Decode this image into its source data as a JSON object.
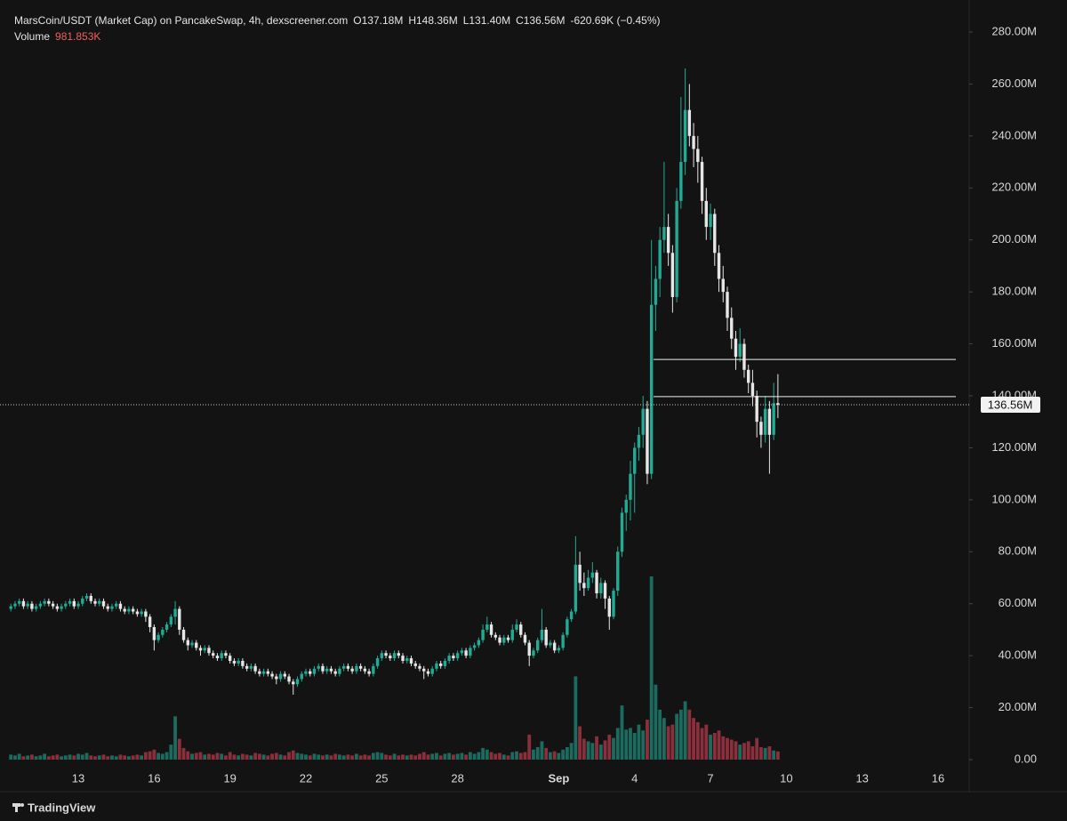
{
  "chart_data": {
    "type": "candlestick",
    "title": "MarsCoin/USDT (Market Cap) on PancakeSwap, 4h, dexscreener.com",
    "ohlc_legend": [
      "O137.18M",
      "H148.36M",
      "L131.40M",
      "C136.56M",
      "-620.69K (−0.45%)"
    ],
    "volume_label": "Volume",
    "volume_value": "981.853K",
    "footer": "TradingView",
    "up_color": "#22ab94",
    "down_color": "#e6e6e6",
    "volume_up_color": "#1c6b5f",
    "volume_down_color": "#8c2f3c",
    "ylim": [
      0,
      280
    ],
    "yticks": [
      {
        "value": 0,
        "label": "0.00"
      },
      {
        "value": 20,
        "label": "20.00M"
      },
      {
        "value": 40,
        "label": "40.00M"
      },
      {
        "value": 60,
        "label": "60.00M"
      },
      {
        "value": 80,
        "label": "80.00M"
      },
      {
        "value": 100,
        "label": "100.00M"
      },
      {
        "value": 120,
        "label": "120.00M"
      },
      {
        "value": 140,
        "label": "140.00M"
      },
      {
        "value": 160,
        "label": "160.00M"
      },
      {
        "value": 180,
        "label": "180.00M"
      },
      {
        "value": 200,
        "label": "200.00M"
      },
      {
        "value": 220,
        "label": "220.00M"
      },
      {
        "value": 240,
        "label": "240.00M"
      },
      {
        "value": 260,
        "label": "260.00M"
      },
      {
        "value": 280,
        "label": "280.00M"
      }
    ],
    "last_price": {
      "value": 136.56,
      "label": "136.56M"
    },
    "hlines": [
      154,
      139.7
    ],
    "categories": [
      null,
      null,
      null,
      null,
      null,
      null,
      null,
      null,
      null,
      null,
      null,
      null,
      null,
      null,
      null,
      null,
      "13",
      null,
      null,
      null,
      null,
      null,
      null,
      null,
      null,
      null,
      null,
      null,
      null,
      null,
      null,
      null,
      null,
      null,
      "16",
      null,
      null,
      null,
      null,
      null,
      null,
      null,
      null,
      null,
      null,
      null,
      null,
      null,
      null,
      null,
      null,
      null,
      "19",
      null,
      null,
      null,
      null,
      null,
      null,
      null,
      null,
      null,
      null,
      null,
      null,
      null,
      null,
      null,
      null,
      null,
      "22",
      null,
      null,
      null,
      null,
      null,
      null,
      null,
      null,
      null,
      null,
      null,
      null,
      null,
      null,
      null,
      null,
      null,
      "25",
      null,
      null,
      null,
      null,
      null,
      null,
      null,
      null,
      null,
      null,
      null,
      null,
      null,
      null,
      null,
      null,
      null,
      "28",
      null,
      null,
      null,
      null,
      null,
      null,
      null,
      null,
      null,
      null,
      null,
      null,
      null,
      null,
      null,
      null,
      null,
      null,
      null,
      null,
      null,
      null,
      null,
      "Sep",
      null,
      null,
      null,
      null,
      null,
      null,
      null,
      null,
      null,
      null,
      null,
      null,
      null,
      null,
      null,
      null,
      null,
      "4",
      null,
      null,
      null,
      null,
      null,
      null,
      null,
      null,
      null,
      null,
      null,
      null,
      null,
      null,
      null,
      null,
      null,
      "7",
      null,
      null,
      null,
      null,
      null,
      null,
      null,
      null,
      null,
      null,
      null,
      null,
      null,
      null,
      null,
      null,
      null,
      "10",
      null,
      null,
      null,
      null,
      null,
      null,
      null,
      null,
      null,
      null,
      null,
      null,
      null,
      null,
      null,
      null,
      null,
      "13",
      null,
      null,
      null,
      null,
      null,
      null,
      null,
      null,
      null,
      null,
      null,
      null,
      null,
      null,
      null,
      null,
      null,
      "16",
      null,
      null,
      null,
      null,
      null,
      null,
      null
    ],
    "candles": [
      [
        58,
        60,
        57,
        59,
        600
      ],
      [
        59,
        61,
        58,
        60,
        500
      ],
      [
        60,
        62,
        59,
        61,
        700
      ],
      [
        61,
        62,
        58,
        59,
        400
      ],
      [
        59,
        61,
        58,
        60,
        500
      ],
      [
        60,
        61,
        57,
        58,
        600
      ],
      [
        58,
        60,
        57,
        59,
        400
      ],
      [
        59,
        61,
        58,
        60,
        500
      ],
      [
        60,
        62,
        59,
        61,
        700
      ],
      [
        61,
        62,
        59,
        60,
        400
      ],
      [
        60,
        61,
        58,
        59,
        500
      ],
      [
        59,
        60,
        57,
        58,
        600
      ],
      [
        58,
        60,
        57,
        59,
        400
      ],
      [
        59,
        61,
        58,
        60,
        500
      ],
      [
        60,
        62,
        59,
        61,
        600
      ],
      [
        61,
        62,
        58,
        59,
        500
      ],
      [
        59,
        61,
        58,
        60,
        700
      ],
      [
        60,
        63,
        59,
        62,
        600
      ],
      [
        62,
        64,
        61,
        63,
        800
      ],
      [
        63,
        64,
        60,
        61,
        500
      ],
      [
        61,
        62,
        59,
        60,
        400
      ],
      [
        60,
        62,
        59,
        61,
        500
      ],
      [
        61,
        62,
        58,
        59,
        600
      ],
      [
        59,
        60,
        57,
        58,
        400
      ],
      [
        58,
        60,
        57,
        59,
        500
      ],
      [
        59,
        61,
        58,
        60,
        400
      ],
      [
        60,
        61,
        57,
        58,
        600
      ],
      [
        58,
        59,
        56,
        57,
        500
      ],
      [
        57,
        59,
        56,
        58,
        400
      ],
      [
        58,
        59,
        56,
        57,
        500
      ],
      [
        57,
        58,
        55,
        56,
        600
      ],
      [
        56,
        58,
        55,
        57,
        500
      ],
      [
        57,
        58,
        53,
        55,
        900
      ],
      [
        55,
        56,
        49,
        51,
        1000
      ],
      [
        51,
        52,
        42,
        46,
        1200
      ],
      [
        46,
        49,
        45,
        48,
        800
      ],
      [
        48,
        51,
        47,
        50,
        700
      ],
      [
        50,
        53,
        49,
        52,
        900
      ],
      [
        52,
        56,
        51,
        55,
        1800
      ],
      [
        55,
        61,
        52,
        58,
        5200
      ],
      [
        58,
        59,
        48,
        50,
        2500
      ],
      [
        50,
        51,
        45,
        46,
        1400
      ],
      [
        46,
        47,
        42,
        44,
        1000
      ],
      [
        44,
        46,
        43,
        45,
        700
      ],
      [
        45,
        46,
        42,
        43,
        800
      ],
      [
        43,
        44,
        40,
        42,
        900
      ],
      [
        42,
        44,
        41,
        43,
        600
      ],
      [
        43,
        44,
        40,
        41,
        700
      ],
      [
        41,
        42,
        39,
        40,
        600
      ],
      [
        40,
        41,
        38,
        39,
        800
      ],
      [
        39,
        42,
        38,
        41,
        700
      ],
      [
        41,
        42,
        39,
        40,
        500
      ],
      [
        40,
        41,
        37,
        38,
        900
      ],
      [
        38,
        39,
        36,
        37,
        600
      ],
      [
        37,
        39,
        36,
        38,
        500
      ],
      [
        38,
        39,
        35,
        36,
        700
      ],
      [
        36,
        37,
        34,
        35,
        600
      ],
      [
        35,
        37,
        34,
        36,
        500
      ],
      [
        36,
        37,
        33,
        34,
        800
      ],
      [
        34,
        35,
        32,
        33,
        700
      ],
      [
        33,
        35,
        32,
        34,
        600
      ],
      [
        34,
        35,
        32,
        33,
        500
      ],
      [
        33,
        34,
        31,
        32,
        700
      ],
      [
        32,
        33,
        29,
        31,
        800
      ],
      [
        31,
        34,
        30,
        33,
        600
      ],
      [
        33,
        34,
        31,
        32,
        500
      ],
      [
        32,
        33,
        29,
        30,
        900
      ],
      [
        30,
        31,
        25,
        29,
        1100
      ],
      [
        29,
        32,
        28,
        31,
        800
      ],
      [
        31,
        34,
        30,
        33,
        700
      ],
      [
        33,
        35,
        32,
        34,
        600
      ],
      [
        34,
        35,
        32,
        33,
        500
      ],
      [
        33,
        36,
        32,
        35,
        700
      ],
      [
        35,
        37,
        34,
        36,
        600
      ],
      [
        36,
        37,
        33,
        34,
        500
      ],
      [
        34,
        36,
        33,
        35,
        600
      ],
      [
        35,
        36,
        33,
        34,
        500
      ],
      [
        34,
        35,
        32,
        33,
        700
      ],
      [
        33,
        36,
        32,
        35,
        600
      ],
      [
        35,
        37,
        34,
        36,
        500
      ],
      [
        36,
        37,
        34,
        35,
        600
      ],
      [
        35,
        36,
        33,
        34,
        500
      ],
      [
        34,
        37,
        33,
        36,
        700
      ],
      [
        36,
        37,
        34,
        35,
        500
      ],
      [
        35,
        36,
        33,
        34,
        600
      ],
      [
        34,
        35,
        32,
        33,
        500
      ],
      [
        33,
        37,
        32,
        36,
        800
      ],
      [
        36,
        40,
        35,
        39,
        900
      ],
      [
        39,
        42,
        38,
        41,
        800
      ],
      [
        41,
        42,
        39,
        40,
        600
      ],
      [
        40,
        41,
        38,
        39,
        500
      ],
      [
        39,
        42,
        38,
        41,
        700
      ],
      [
        41,
        42,
        39,
        40,
        500
      ],
      [
        40,
        41,
        37,
        38,
        600
      ],
      [
        38,
        40,
        37,
        39,
        500
      ],
      [
        39,
        40,
        36,
        37,
        600
      ],
      [
        37,
        38,
        35,
        36,
        500
      ],
      [
        36,
        37,
        34,
        35,
        700
      ],
      [
        35,
        36,
        31,
        34,
        900
      ],
      [
        34,
        35,
        32,
        33,
        600
      ],
      [
        33,
        36,
        32,
        35,
        700
      ],
      [
        35,
        38,
        34,
        37,
        800
      ],
      [
        37,
        38,
        35,
        36,
        500
      ],
      [
        36,
        39,
        35,
        38,
        700
      ],
      [
        38,
        41,
        37,
        40,
        800
      ],
      [
        40,
        41,
        38,
        39,
        600
      ],
      [
        39,
        42,
        38,
        41,
        700
      ],
      [
        41,
        43,
        40,
        42,
        800
      ],
      [
        42,
        43,
        39,
        40,
        600
      ],
      [
        40,
        44,
        39,
        43,
        900
      ],
      [
        43,
        45,
        42,
        44,
        700
      ],
      [
        44,
        47,
        43,
        46,
        900
      ],
      [
        46,
        52,
        45,
        50,
        1400
      ],
      [
        50,
        55,
        49,
        52,
        1200
      ],
      [
        52,
        53,
        47,
        48,
        900
      ],
      [
        48,
        49,
        46,
        47,
        700
      ],
      [
        47,
        48,
        44,
        45,
        800
      ],
      [
        45,
        48,
        44,
        47,
        600
      ],
      [
        47,
        48,
        45,
        46,
        500
      ],
      [
        46,
        52,
        45,
        50,
        900
      ],
      [
        50,
        54,
        49,
        52,
        1000
      ],
      [
        52,
        53,
        47,
        48,
        800
      ],
      [
        48,
        49,
        44,
        45,
        900
      ],
      [
        45,
        46,
        36,
        40,
        3000
      ],
      [
        40,
        43,
        39,
        42,
        1200
      ],
      [
        42,
        47,
        41,
        46,
        1500
      ],
      [
        46,
        58,
        45,
        50,
        2200
      ],
      [
        50,
        51,
        43,
        44,
        1400
      ],
      [
        44,
        46,
        43,
        45,
        900
      ],
      [
        45,
        46,
        41,
        42,
        1000
      ],
      [
        42,
        44,
        41,
        43,
        800
      ],
      [
        43,
        49,
        42,
        48,
        1200
      ],
      [
        48,
        55,
        47,
        54,
        1500
      ],
      [
        54,
        58,
        53,
        57,
        2000
      ],
      [
        57,
        86,
        56,
        75,
        10000
      ],
      [
        75,
        80,
        65,
        68,
        4000
      ],
      [
        68,
        72,
        63,
        66,
        2500
      ],
      [
        66,
        73,
        65,
        70,
        2200
      ],
      [
        70,
        76,
        68,
        72,
        2000
      ],
      [
        72,
        73,
        62,
        64,
        2800
      ],
      [
        64,
        70,
        62,
        68,
        1800
      ],
      [
        68,
        69,
        58,
        62,
        2300
      ],
      [
        62,
        63,
        50,
        55,
        3000
      ],
      [
        55,
        66,
        54,
        65,
        2600
      ],
      [
        65,
        82,
        63,
        80,
        3800
      ],
      [
        80,
        97,
        78,
        95,
        6500
      ],
      [
        95,
        102,
        88,
        100,
        3600
      ],
      [
        100,
        115,
        92,
        110,
        3800
      ],
      [
        110,
        122,
        95,
        120,
        3200
      ],
      [
        120,
        128,
        115,
        125,
        4200
      ],
      [
        125,
        140,
        120,
        135,
        3500
      ],
      [
        135,
        138,
        106,
        110,
        4800
      ],
      [
        110,
        200,
        108,
        175,
        22000
      ],
      [
        175,
        190,
        165,
        185,
        9000
      ],
      [
        185,
        205,
        178,
        200,
        6000
      ],
      [
        200,
        230,
        195,
        205,
        5000
      ],
      [
        205,
        210,
        190,
        195,
        4000
      ],
      [
        195,
        198,
        172,
        178,
        4200
      ],
      [
        178,
        220,
        176,
        215,
        5500
      ],
      [
        215,
        255,
        212,
        230,
        6000
      ],
      [
        230,
        266,
        225,
        250,
        7000
      ],
      [
        250,
        260,
        236,
        240,
        6000
      ],
      [
        240,
        245,
        228,
        235,
        5000
      ],
      [
        235,
        240,
        222,
        230,
        4500
      ],
      [
        230,
        232,
        210,
        215,
        3800
      ],
      [
        215,
        220,
        200,
        205,
        4200
      ],
      [
        205,
        214,
        200,
        210,
        3000
      ],
      [
        210,
        212,
        190,
        195,
        3200
      ],
      [
        195,
        198,
        180,
        185,
        3500
      ],
      [
        185,
        190,
        176,
        180,
        2800
      ],
      [
        180,
        182,
        165,
        170,
        2600
      ],
      [
        170,
        174,
        158,
        162,
        2400
      ],
      [
        162,
        165,
        150,
        155,
        2200
      ],
      [
        155,
        166,
        153,
        160,
        1800
      ],
      [
        160,
        162,
        147,
        150,
        2000
      ],
      [
        150,
        152,
        141,
        145,
        2200
      ],
      [
        145,
        150,
        136,
        140,
        1600
      ],
      [
        140,
        142,
        124,
        130,
        2600
      ],
      [
        130,
        132,
        120,
        125,
        1500
      ],
      [
        125,
        140,
        122,
        135,
        1400
      ],
      [
        135,
        138,
        110,
        125,
        1600
      ],
      [
        125,
        145,
        123,
        137.18,
        1100
      ],
      [
        137.18,
        148.36,
        131.4,
        136.56,
        981.853
      ],
      null,
      null,
      null,
      null,
      null,
      null,
      null,
      null,
      null,
      null,
      null,
      null,
      null,
      null,
      null,
      null,
      null,
      null,
      null,
      null,
      null,
      null,
      null,
      null,
      null,
      null,
      null,
      null,
      null,
      null,
      null,
      null,
      null,
      null,
      null,
      null,
      null,
      null,
      null,
      null,
      null,
      null,
      null,
      null,
      null
    ]
  }
}
